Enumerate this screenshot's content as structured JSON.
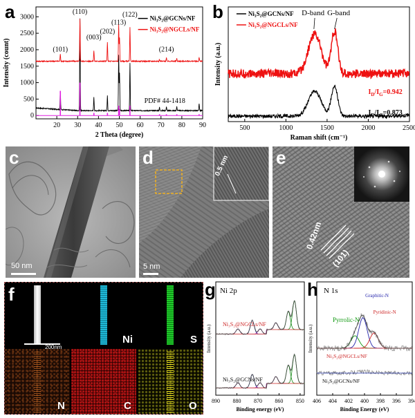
{
  "panels": {
    "a": "a",
    "b": "b",
    "c": "c",
    "d": "d",
    "e": "e",
    "f": "f",
    "g": "g",
    "h": "h"
  },
  "chart_data": [
    {
      "id": "a",
      "type": "line",
      "xlabel": "2 Theta (degree)",
      "ylabel": "Intensity (count)",
      "xlim": [
        10,
        90
      ],
      "ylim": [
        -100,
        3300
      ],
      "xticks": [
        20,
        30,
        40,
        50,
        60,
        70,
        80,
        90
      ],
      "yticks": [
        0,
        500,
        1000,
        1500,
        2000,
        2500,
        3000
      ],
      "legend_position": "top-right",
      "series": [
        {
          "name": "Ni₃S₂@GCNs/NF",
          "color": "#000000",
          "baseline": 150,
          "peaks": [
            [
              21.7,
              550
            ],
            [
              31.1,
              2800
            ],
            [
              37.8,
              400
            ],
            [
              44.3,
              450
            ],
            [
              49.7,
              1700
            ],
            [
              50.1,
              1150
            ],
            [
              55.1,
              1450
            ],
            [
              69.3,
              100
            ],
            [
              72.6,
              120
            ],
            [
              77.6,
              130
            ],
            [
              88.3,
              220
            ]
          ]
        },
        {
          "name": "Ni₃S₂@NGCLs/NF",
          "color": "#ee1111",
          "baseline": 1650,
          "peaks": [
            [
              21.7,
              230
            ],
            [
              31.1,
              1280
            ],
            [
              37.8,
              320
            ],
            [
              44.3,
              570
            ],
            [
              49.7,
              1120
            ],
            [
              50.1,
              700
            ],
            [
              55.1,
              1020
            ],
            [
              69.3,
              60
            ],
            [
              72.6,
              100
            ],
            [
              77.6,
              80
            ],
            [
              88.3,
              120
            ]
          ]
        }
      ],
      "reference": {
        "name": "PDF# 44-1418",
        "color": "#e020e0",
        "sticks": [
          [
            21.7,
            750
          ],
          [
            31.1,
            1000
          ],
          [
            37.8,
            80
          ],
          [
            44.3,
            80
          ],
          [
            49.7,
            300
          ],
          [
            50.1,
            200
          ],
          [
            55.1,
            300
          ],
          [
            69.3,
            40
          ],
          [
            72.6,
            40
          ],
          [
            77.6,
            40
          ],
          [
            88.3,
            40
          ]
        ]
      },
      "annotations": [
        {
          "text": "(101)",
          "x": 21.7,
          "y": 1950
        },
        {
          "text": "(110)",
          "x": 31.1,
          "y": 3090
        },
        {
          "text": "(003)",
          "x": 37.8,
          "y": 2310
        },
        {
          "text": "(202)",
          "x": 44.3,
          "y": 2490
        },
        {
          "text": "(113)",
          "x": 49.7,
          "y": 2760
        },
        {
          "text": "(122)",
          "x": 55.1,
          "y": 3010
        },
        {
          "text": "(214)",
          "x": 72.6,
          "y": 1950
        }
      ]
    },
    {
      "id": "b",
      "type": "line",
      "xlabel": "Raman shift (cm⁻¹)",
      "ylabel": "Intensity (a.u.)",
      "xlim": [
        300,
        2500
      ],
      "xticks": [
        500,
        1000,
        1500,
        2000,
        2500
      ],
      "legend_position": "top-left",
      "series": [
        {
          "name": "Ni₃S₂@GCNs/NF",
          "color": "#000000",
          "offset": 0,
          "d_height": 1.0,
          "g_height": 1.2
        },
        {
          "name": "Ni₃S₂@NGCLs/NF",
          "color": "#ee1111",
          "offset": 1.7,
          "d_height": 1.6,
          "g_height": 1.7
        }
      ],
      "annotations": [
        {
          "text": "D-band",
          "x": 1350
        },
        {
          "text": "G-band",
          "x": 1590
        },
        {
          "text": "I_D/I_G=0.942"
        },
        {
          "text": "I_D/I_G=0.873"
        }
      ],
      "ratio_red": "I",
      "ratio_red_sub1": "D",
      "ratio_red_mid": "/I",
      "ratio_red_sub2": "G",
      "ratio_red_val": "=0.942",
      "ratio_black_val": "=0.873"
    },
    {
      "id": "g",
      "type": "line",
      "title": "Ni 2p",
      "xlabel": "Binding energy (eV)",
      "ylabel": "Intensity (a.u.)",
      "xlim": [
        890,
        848
      ],
      "xticks": [
        890,
        880,
        870,
        860,
        850
      ],
      "series": [
        {
          "name": "Ni₃S₂@NGCLs/NF",
          "color": "#cc2222"
        },
        {
          "name": "Ni₃S₂@GCNs/NF",
          "color": "#000000"
        }
      ]
    },
    {
      "id": "h",
      "type": "line",
      "title": "N 1s",
      "xlabel": "Binding Energy (eV)",
      "ylabel": "Intensity (a.u.)",
      "xlim": [
        406,
        394
      ],
      "xticks": [
        406,
        404,
        402,
        400,
        398,
        396,
        394
      ],
      "series": [
        {
          "name": "Ni₃S₂@NGCLs/NF",
          "color": "#cc2222"
        },
        {
          "name": "Ni₃S₂@GCNs/NF",
          "color": "#000000"
        }
      ],
      "annotations": [
        {
          "text": "Graphitic-N",
          "color": "#2222aa"
        },
        {
          "text": "Pyridinic-N",
          "color": "#cc2222"
        },
        {
          "text": "Pyrrolic-N",
          "color": "#119911"
        }
      ]
    }
  ],
  "tem": {
    "c_scale": "50 nm",
    "d_scale": "5 nm",
    "d_inset": "0.5 nm",
    "e_spacing": "0.42nm",
    "e_plane": "(101)"
  },
  "mapping": {
    "scale": "200nm",
    "elements": [
      {
        "symbol": "Ni",
        "color": "#1fb8d6"
      },
      {
        "symbol": "S",
        "color": "#1fcc2a"
      },
      {
        "symbol": "N",
        "color": "#e07a2a"
      },
      {
        "symbol": "C",
        "color": "#d81818"
      },
      {
        "symbol": "O",
        "color": "#e8e020"
      }
    ]
  }
}
